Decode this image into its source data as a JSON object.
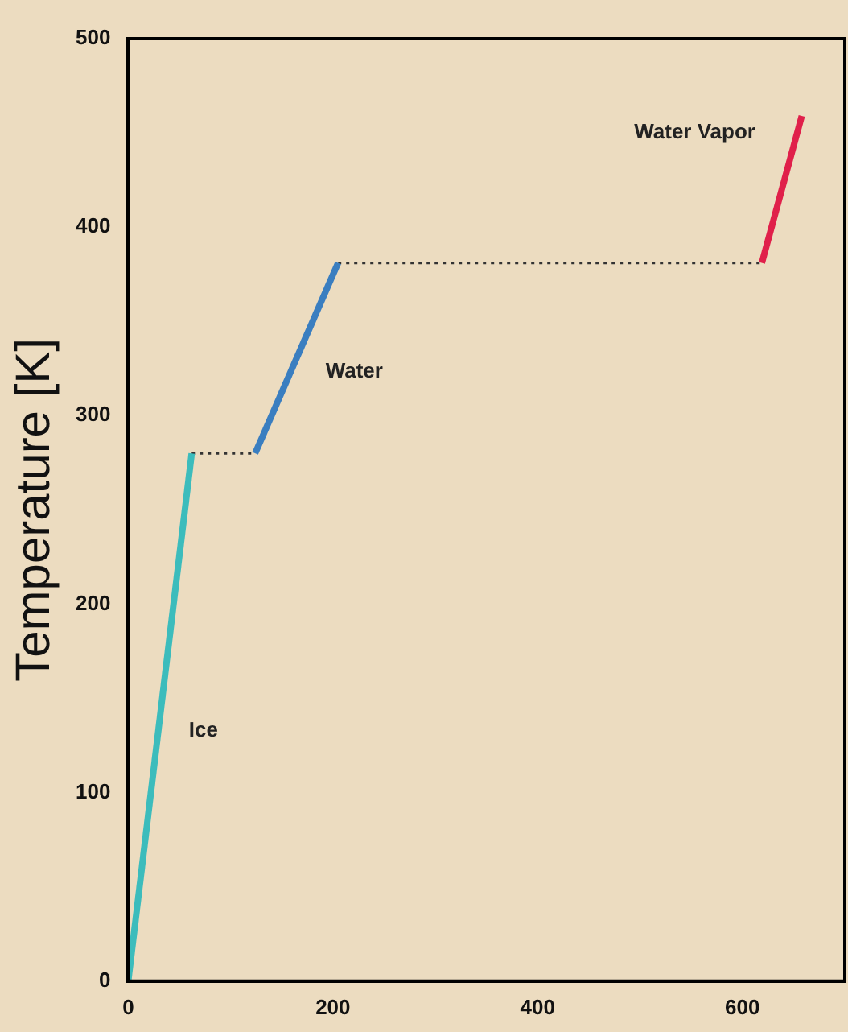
{
  "chart_data": {
    "type": "line",
    "ylabel": "Temperature [K]",
    "xlim": [
      0,
      700
    ],
    "ylim": [
      0,
      500
    ],
    "xticks": [
      0,
      200,
      400,
      600
    ],
    "yticks": [
      0,
      100,
      200,
      300,
      400,
      500
    ],
    "grid": false,
    "legend": false,
    "marker": "none",
    "series": [
      {
        "name": "Ice",
        "color": "#3cbcbc",
        "x": [
          0,
          62
        ],
        "values": [
          0,
          280
        ],
        "line_style": "solid"
      },
      {
        "color": "#333333",
        "x": [
          62,
          124
        ],
        "values": [
          280,
          280
        ],
        "line_style": "dotted"
      },
      {
        "name": "Water",
        "color": "#3a7ec0",
        "x": [
          124,
          205
        ],
        "values": [
          280,
          381
        ],
        "line_style": "solid"
      },
      {
        "color": "#333333",
        "x": [
          205,
          619
        ],
        "values": [
          381,
          381
        ],
        "line_style": "dotted"
      },
      {
        "name": "Water Vapor",
        "color": "#e0204a",
        "x": [
          619,
          658
        ],
        "values": [
          381,
          459
        ],
        "line_style": "solid"
      }
    ]
  }
}
